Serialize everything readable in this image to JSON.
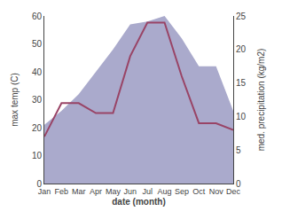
{
  "chart_data": {
    "type": "line",
    "categories": [
      "Jan",
      "Feb",
      "Mar",
      "Apr",
      "May",
      "Jun",
      "Jul",
      "Aug",
      "Sep",
      "Oct",
      "Nov",
      "Dec"
    ],
    "series": [
      {
        "type": "area",
        "color": "#aaaacc",
        "values": [
          21,
          26,
          32,
          40,
          48,
          57,
          58,
          60,
          52,
          42,
          42,
          26
        ]
      },
      {
        "type": "line",
        "color": "#994466",
        "axis": "y2",
        "values": [
          7,
          12,
          12,
          10.5,
          10.5,
          19,
          24,
          24,
          16,
          9,
          9,
          8
        ]
      }
    ],
    "xlabel": "date (month)",
    "ylabel": "max temp (C)",
    "y2label": "med. precipitation (kg/m2)",
    "ylim": [
      0,
      60
    ],
    "yticks": [
      0,
      10,
      20,
      30,
      40,
      50,
      60
    ],
    "y2lim": [
      0,
      25
    ],
    "y2ticks": [
      0,
      5,
      10,
      15,
      20,
      25
    ],
    "grid": false
  }
}
